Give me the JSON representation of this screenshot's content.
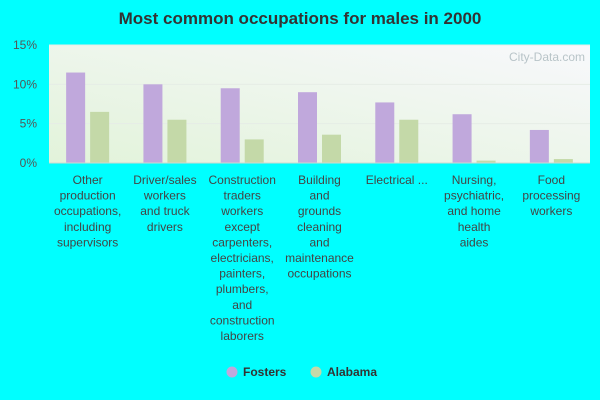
{
  "chart_data": {
    "type": "bar",
    "title": "Most common occupations for males in 2000",
    "xlabel": "",
    "ylabel": "",
    "ylim": [
      0,
      15
    ],
    "yticks": [
      "0%",
      "5%",
      "10%",
      "15%"
    ],
    "categories": [
      "Other production occupations, including supervisors",
      "Driver/sales workers and truck drivers",
      "Construction traders workers except carpenters, electricians, painters, plumbers, and construction laborers",
      "Building and grounds cleaning and maintenance occupations",
      "Electrical ...",
      "Nursing, psychiatric, and home health aides",
      "Food processing workers"
    ],
    "category_lines": [
      [
        "Other",
        "production",
        "occupations,",
        "including",
        "supervisors"
      ],
      [
        "Driver/sales",
        "workers",
        "and truck",
        "drivers"
      ],
      [
        "Construction",
        "traders",
        "workers",
        "except",
        "carpenters,",
        "electricians,",
        "painters,",
        "plumbers,",
        "and",
        "construction",
        "laborers"
      ],
      [
        "Building",
        "and",
        "grounds",
        "cleaning",
        "and",
        "maintenance",
        "occupations"
      ],
      [
        "Electrical ..."
      ],
      [
        "Nursing,",
        "psychiatric,",
        "and home",
        "health",
        "aides"
      ],
      [
        "Food",
        "processing",
        "workers"
      ]
    ],
    "series": [
      {
        "name": "Fosters",
        "color": "#c0a8dc",
        "values": [
          11.5,
          10.0,
          9.5,
          9.0,
          7.7,
          6.2,
          4.2
        ]
      },
      {
        "name": "Alabama",
        "color": "#c4d9a8",
        "values": [
          6.5,
          5.5,
          3.0,
          3.6,
          5.5,
          0.3,
          0.5
        ]
      }
    ],
    "legend_position": "bottom",
    "grid": true
  },
  "watermark": "City-Data.com"
}
